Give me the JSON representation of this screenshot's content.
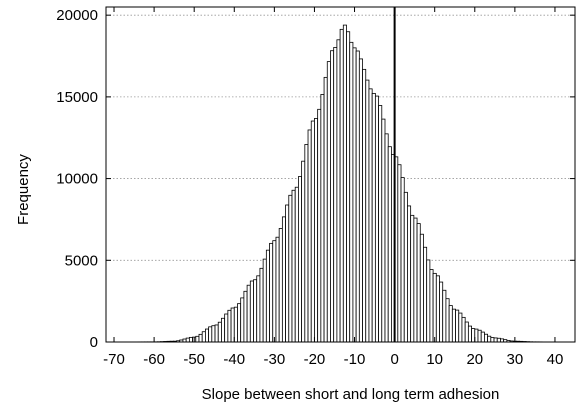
{
  "chart_data": {
    "type": "bar",
    "title": "",
    "xlabel": "Slope between short and long term adhesion",
    "ylabel": "Frequency",
    "xlim": [
      -72,
      45
    ],
    "ylim": [
      0,
      20500
    ],
    "xticks": [
      -70,
      -60,
      -50,
      -40,
      -30,
      -20,
      -10,
      0,
      10,
      20,
      30,
      40
    ],
    "yticks": [
      0,
      5000,
      10000,
      15000,
      20000
    ],
    "grid": "horizontal dotted",
    "legend": "none",
    "reference_line_x": 0,
    "bin_width": 0.8,
    "distribution": "approximately normal",
    "peak": {
      "x": -12.5,
      "y": 19400
    },
    "sampled_bins": [
      {
        "x": -70,
        "y": 0
      },
      {
        "x": -60,
        "y": 10
      },
      {
        "x": -55,
        "y": 50
      },
      {
        "x": -50,
        "y": 300
      },
      {
        "x": -45,
        "y": 1000
      },
      {
        "x": -40,
        "y": 2100
      },
      {
        "x": -35,
        "y": 3800
      },
      {
        "x": -30,
        "y": 6200
      },
      {
        "x": -25,
        "y": 9300
      },
      {
        "x": -20,
        "y": 13600
      },
      {
        "x": -15,
        "y": 18000
      },
      {
        "x": -12.5,
        "y": 19400
      },
      {
        "x": -10,
        "y": 18000
      },
      {
        "x": -5,
        "y": 15200
      },
      {
        "x": 0,
        "y": 11400
      },
      {
        "x": 5,
        "y": 7600
      },
      {
        "x": 10,
        "y": 4200
      },
      {
        "x": 15,
        "y": 2000
      },
      {
        "x": 20,
        "y": 800
      },
      {
        "x": 25,
        "y": 250
      },
      {
        "x": 30,
        "y": 50
      },
      {
        "x": 35,
        "y": 10
      },
      {
        "x": 40,
        "y": 0
      }
    ],
    "colors": {
      "bar_fill": "#ffffff",
      "bar_stroke": "#000000",
      "grid": "#999999",
      "axis": "#000000"
    }
  }
}
